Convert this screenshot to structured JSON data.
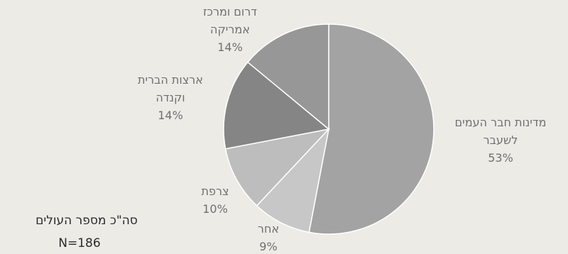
{
  "chart_data": {
    "type": "pie",
    "slices": [
      {
        "label_lines": [
          "מדינות חבר העמים",
          "לשעבר"
        ],
        "value": 53,
        "value_text": "53%",
        "color": "#a3a3a3"
      },
      {
        "label_lines": [
          "אחר"
        ],
        "value": 9,
        "value_text": "9%",
        "color": "#c7c7c7"
      },
      {
        "label_lines": [
          "צרפת"
        ],
        "value": 10,
        "value_text": "10%",
        "color": "#bdbdbd"
      },
      {
        "label_lines": [
          "ארצות הברית",
          "וקנדה"
        ],
        "value": 14,
        "value_text": "14%",
        "color": "#858585"
      },
      {
        "label_lines": [
          "דרום ומרכז",
          "אמריקה"
        ],
        "value": 14,
        "value_text": "14%",
        "color": "#979797"
      }
    ],
    "legend": "none",
    "grid": false
  },
  "total": {
    "label": "סה\"כ מספר העולים",
    "n": "N=186"
  }
}
